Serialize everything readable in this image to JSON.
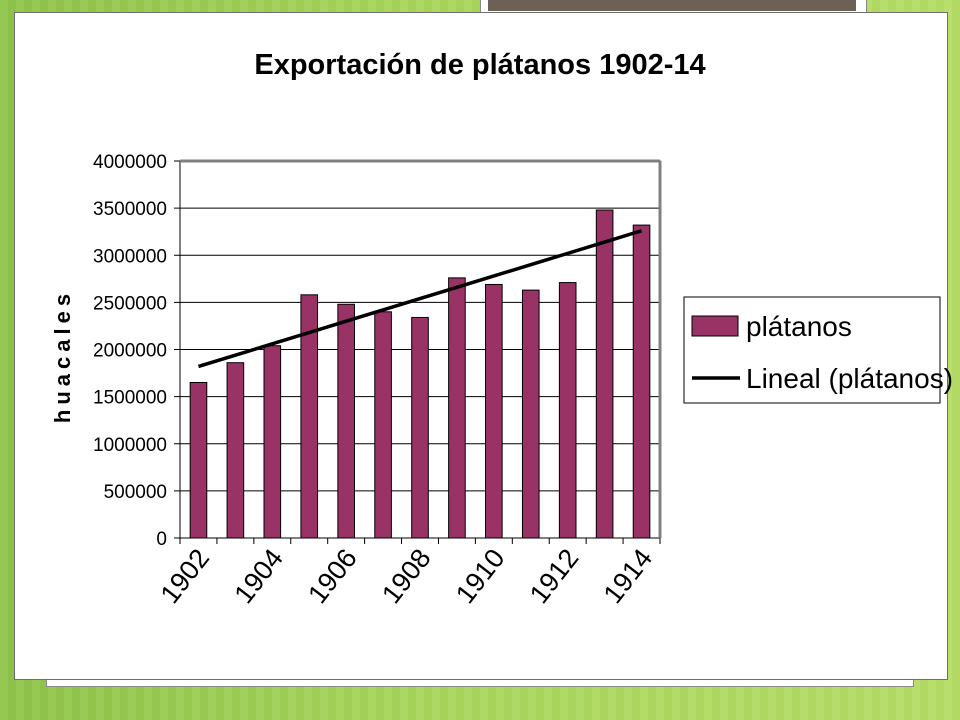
{
  "chart_data": {
    "type": "bar",
    "title": "Exportación de plátanos 1902-14",
    "xlabel": "",
    "ylabel": "huacales",
    "x": [
      1902,
      1903,
      1904,
      1905,
      1906,
      1907,
      1908,
      1909,
      1910,
      1911,
      1912,
      1913,
      1914
    ],
    "x_tick_labels": [
      "1902",
      "1904",
      "1906",
      "1908",
      "1910",
      "1912",
      "1914"
    ],
    "y_tick_labels": [
      "4000000",
      "3500000",
      "3000000",
      "2500000",
      "2000000",
      "1500000",
      "1000000",
      "500000",
      "0"
    ],
    "ylim": [
      0,
      4000000
    ],
    "grid": "horizontal",
    "legend_position": "right",
    "series": [
      {
        "name": "plátanos",
        "kind": "bar",
        "color": "#993366",
        "values": [
          1650000,
          1860000,
          2040000,
          2580000,
          2480000,
          2400000,
          2340000,
          2760000,
          2690000,
          2630000,
          2710000,
          3480000,
          3320000
        ]
      },
      {
        "name": "Lineal (plátanos)",
        "kind": "trendline",
        "color": "#000000",
        "values": [
          1820000,
          1940000,
          2060000,
          2180000,
          2300000,
          2420000,
          2540000,
          2660000,
          2780000,
          2900000,
          3020000,
          3140000,
          3260000
        ]
      }
    ]
  }
}
